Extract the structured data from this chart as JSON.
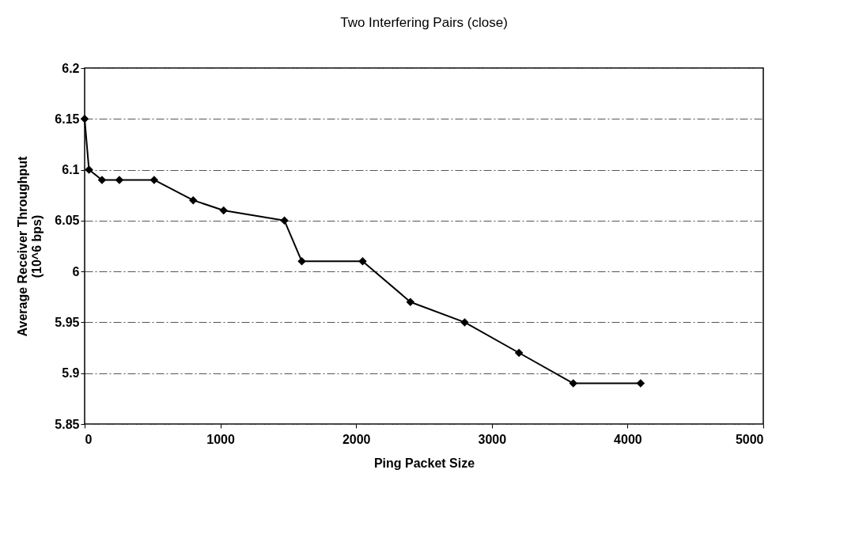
{
  "chart_data": {
    "type": "line",
    "title": "Two Interfering Pairs (close)",
    "xlabel": "Ping Packet Size",
    "ylabel": "Average Receiver Throughput (10^6 bps)",
    "x": [
      0,
      32,
      128,
      256,
      512,
      800,
      1024,
      1472,
      1600,
      2048,
      2400,
      2800,
      3200,
      3600,
      4096
    ],
    "series": [
      {
        "color": "#000000",
        "values": [
          6.15,
          6.1,
          6.09,
          6.09,
          6.09,
          6.07,
          6.06,
          6.05,
          6.01,
          6.01,
          5.97,
          5.95,
          5.92,
          5.89,
          5.89
        ]
      }
    ],
    "xlim": [
      0,
      5000
    ],
    "xticks": [
      0,
      1000,
      2000,
      3000,
      4000,
      5000
    ],
    "ylim": [
      5.85,
      6.2
    ],
    "yticks": [
      5.85,
      5.9,
      5.95,
      6,
      6.05,
      6.1,
      6.15,
      6.2
    ],
    "grid": "y",
    "marker": "diamond",
    "line_style": "solid"
  }
}
